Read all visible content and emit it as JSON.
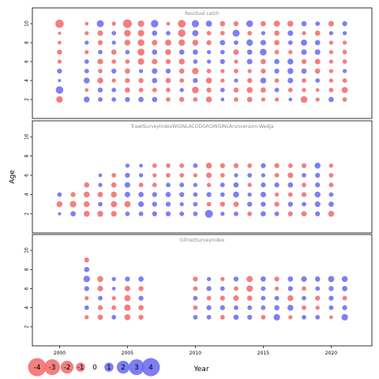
{
  "chart_data": {
    "type": "scatter",
    "subtype": "bubble-residual-plot",
    "xlabel": "Year",
    "ylabel": "Age",
    "xlim": [
      1998,
      2023
    ],
    "ylim": [
      1,
      11
    ],
    "x_ticks": [
      2000,
      2005,
      2010,
      2015,
      2020
    ],
    "y_ticks": [
      2,
      4,
      6,
      8,
      10
    ],
    "ages": [
      2,
      3,
      4,
      5,
      6,
      7,
      8,
      9,
      10
    ],
    "colors": {
      "positive": "#6c6cf4",
      "negative": "#f46c6c"
    },
    "legend": {
      "position": "bottom-left",
      "entries": [
        {
          "label": "-4",
          "value": -4
        },
        {
          "label": "-3",
          "value": -3
        },
        {
          "label": "-2",
          "value": -2
        },
        {
          "label": "-1",
          "value": -1
        },
        {
          "label": "0",
          "value": 0
        },
        {
          "label": "1",
          "value": 1
        },
        {
          "label": "2",
          "value": 2
        },
        {
          "label": "3",
          "value": 3
        },
        {
          "label": "4",
          "value": 4
        }
      ]
    },
    "panels": [
      {
        "title": "Residual catch",
        "years": [
          2000,
          2002,
          2003,
          2004,
          2005,
          2006,
          2007,
          2008,
          2009,
          2010,
          2011,
          2012,
          2013,
          2014,
          2015,
          2016,
          2017,
          2018,
          2019,
          2020,
          2021
        ],
        "residuals": [
          [
            -1.2,
            1.6,
            0.3,
            0.7,
            -0.5,
            -0.7,
            -0.4,
            -0.3,
            -2.0
          ],
          [
            1.0,
            -0.4,
            1.0,
            0.6,
            0.6,
            -0.5,
            0.5,
            -0.5,
            -0.4
          ],
          [
            0.6,
            0.7,
            -1.0,
            -0.6,
            -0.9,
            0.6,
            -0.7,
            -0.9,
            1.4
          ],
          [
            0.6,
            0.6,
            -0.5,
            0.7,
            -0.6,
            -0.8,
            0.5,
            0.6,
            -0.5
          ],
          [
            0.7,
            -0.8,
            -0.7,
            -0.8,
            -0.6,
            0.6,
            -1.0,
            -1.3,
            -2.2
          ],
          [
            0.8,
            -0.6,
            -0.7,
            0.5,
            -1.2,
            -1.4,
            -1.3,
            -1.2,
            -1.2
          ],
          [
            0.8,
            -0.6,
            0.8,
            0.9,
            -0.9,
            0.8,
            -0.9,
            0.8,
            1.6
          ],
          [
            -0.6,
            -0.6,
            -0.8,
            0.7,
            -0.7,
            -1.0,
            -1.1,
            0.6,
            -0.4
          ],
          [
            -0.7,
            0.5,
            -0.6,
            -0.8,
            -1.0,
            0.8,
            -1.2,
            -1.6,
            -1.7
          ],
          [
            -0.6,
            -1.3,
            0.7,
            -1.2,
            0.6,
            0.8,
            -1.0,
            1.1,
            1.5
          ],
          [
            -1.0,
            -0.7,
            -1.0,
            -0.6,
            0.5,
            0.5,
            -0.7,
            -0.6,
            1.1
          ],
          [
            0.4,
            0.6,
            -0.5,
            -0.5,
            0.7,
            0.6,
            0.8,
            -0.6,
            -0.8
          ],
          [
            -0.6,
            -0.7,
            0.5,
            -0.6,
            -0.5,
            -0.9,
            0.6,
            1.4,
            -0.7
          ],
          [
            -0.8,
            -1.0,
            -0.7,
            -0.5,
            0.9,
            0.8,
            1.2,
            -0.6,
            1.3
          ],
          [
            -0.5,
            -0.8,
            1.0,
            -0.7,
            -0.8,
            1.3,
            0.9,
            0.5,
            -0.8
          ],
          [
            -0.5,
            0.6,
            -0.6,
            0.7,
            0.8,
            -0.6,
            -0.8,
            -0.8,
            -1.1
          ],
          [
            0.4,
            -0.6,
            0.9,
            1.0,
            1.0,
            -0.5,
            0.6,
            0.9,
            -1.0
          ],
          [
            -1.3,
            -0.5,
            -0.6,
            0.8,
            -0.7,
            0.9,
            1.1,
            -0.5,
            0.8
          ],
          [
            -0.5,
            -0.4,
            0.6,
            -0.8,
            -0.9,
            0.9,
            0.8,
            -0.8,
            0.6
          ],
          [
            0.8,
            -0.6,
            -0.5,
            -0.5,
            -0.5,
            -0.5,
            -0.5,
            0.5,
            -0.9
          ],
          [
            -0.6,
            -1.1,
            -0.6,
            0.5,
            -0.6,
            -0.6,
            -0.5,
            0.5,
            0.7
          ]
        ]
      },
      {
        "title": "TrawlSurveyIndexWGINLACODGROWGINLArunversion:Wedja",
        "years": [
          2000,
          2001,
          2002,
          2003,
          2004,
          2005,
          2006,
          2007,
          2008,
          2009,
          2010,
          2011,
          2012,
          2013,
          2014,
          2015,
          2016,
          2017,
          2018,
          2019,
          2020
        ],
        "residuals": [
          [
            0.3,
            -1.0,
            0.6,
            null,
            null,
            null,
            null,
            null,
            null
          ],
          [
            0.8,
            -1.2,
            -0.7,
            null,
            null,
            null,
            null,
            null,
            null
          ],
          [
            -1.0,
            -1.0,
            -1.0,
            -0.8,
            null,
            null,
            null,
            null,
            null
          ],
          [
            -1.0,
            0.6,
            -0.8,
            0.5,
            0.4,
            null,
            null,
            null,
            null
          ],
          [
            -0.9,
            -1.1,
            -1.0,
            -0.8,
            -0.6,
            null,
            null,
            null,
            null
          ],
          [
            0.6,
            -1.1,
            0.9,
            0.9,
            0.7,
            0.5,
            null,
            null,
            null
          ],
          [
            0.6,
            0.9,
            0.8,
            -0.6,
            0.5,
            0.4,
            null,
            null,
            null
          ],
          [
            0.7,
            0.7,
            0.7,
            -0.6,
            -0.5,
            -0.6,
            null,
            null,
            null
          ],
          [
            0.7,
            0.7,
            0.8,
            0.6,
            -0.6,
            -0.6,
            null,
            null,
            null
          ],
          [
            0.6,
            0.5,
            0.7,
            0.6,
            -0.6,
            -0.6,
            null,
            null,
            null
          ],
          [
            0.6,
            0.6,
            0.6,
            0.5,
            -0.5,
            0.6,
            null,
            null,
            null
          ],
          [
            1.8,
            -0.6,
            0.7,
            -0.5,
            -0.9,
            -1.0,
            null,
            null,
            null
          ],
          [
            0.5,
            -0.7,
            0.6,
            0.6,
            -0.6,
            -0.7,
            null,
            null,
            null
          ],
          [
            0.6,
            -0.8,
            1.0,
            0.8,
            0.5,
            -0.7,
            null,
            null,
            null
          ],
          [
            -0.6,
            0.7,
            0.5,
            -0.5,
            0.6,
            -0.6,
            null,
            null,
            null
          ],
          [
            0.8,
            0.7,
            0.9,
            0.7,
            0.5,
            0.7,
            null,
            null,
            null
          ],
          [
            0.6,
            -0.7,
            -0.5,
            0.7,
            -0.6,
            -0.7,
            null,
            null,
            null
          ],
          [
            -0.7,
            0.7,
            -0.6,
            0.8,
            -0.9,
            -0.6,
            null,
            null,
            null
          ],
          [
            -0.8,
            0.6,
            -0.7,
            -0.6,
            0.6,
            -0.7,
            null,
            null,
            null
          ],
          [
            0.7,
            0.9,
            1.0,
            0.7,
            0.7,
            1.0,
            null,
            null,
            null
          ],
          [
            -1.0,
            0.8,
            0.6,
            -0.6,
            -0.6,
            -0.5,
            null,
            null,
            null
          ]
        ]
      },
      {
        "title": "GillnetSurveyIndex",
        "years": [
          2002,
          2003,
          2004,
          2005,
          2006,
          2010,
          2011,
          2012,
          2013,
          2014,
          2015,
          2016,
          2017,
          2018,
          2019,
          2020,
          2021
        ],
        "residuals": [
          [
            null,
            -0.5,
            0.6,
            -0.5,
            0.7,
            1.2,
            0.8,
            -0.7,
            null
          ],
          [
            null,
            -0.8,
            -0.7,
            0.6,
            -0.9,
            -1.0,
            null,
            null,
            null
          ],
          [
            null,
            0.6,
            -0.6,
            -0.5,
            0.4,
            0.5,
            null,
            null,
            null
          ],
          [
            null,
            -1.0,
            -1.2,
            -1.1,
            -0.9,
            0.7,
            null,
            null,
            null
          ],
          [
            null,
            -0.7,
            -0.8,
            0.7,
            -0.7,
            0.8,
            null,
            null,
            null
          ],
          [
            null,
            0.6,
            -0.6,
            0.6,
            -0.6,
            -0.7,
            null,
            null,
            null
          ],
          [
            null,
            0.6,
            0.7,
            -0.6,
            0.7,
            0.5,
            null,
            null,
            null
          ],
          [
            null,
            -0.6,
            0.7,
            -0.7,
            0.6,
            -0.5,
            null,
            null,
            null
          ],
          [
            null,
            0.8,
            0.6,
            -0.9,
            -0.6,
            0.7,
            null,
            null,
            null
          ],
          [
            null,
            0.7,
            0.6,
            -0.8,
            -1.2,
            -1.1,
            null,
            null,
            null
          ],
          [
            null,
            -0.6,
            0.6,
            0.6,
            0.6,
            0.8,
            null,
            null,
            null
          ],
          [
            null,
            1.2,
            0.8,
            0.6,
            -0.5,
            -0.7,
            null,
            null,
            null
          ],
          [
            null,
            -0.5,
            1.0,
            -1.0,
            0.7,
            0.8,
            null,
            null,
            null
          ],
          [
            null,
            0.6,
            -0.6,
            0.6,
            -0.6,
            0.9,
            null,
            null,
            null
          ],
          [
            null,
            0.6,
            -0.5,
            -0.7,
            0.6,
            0.8,
            null,
            null,
            null
          ],
          [
            null,
            -0.4,
            0.6,
            0.7,
            0.7,
            1.1,
            null,
            null,
            null
          ],
          [
            null,
            1.2,
            0.7,
            -0.6,
            0.8,
            1.0,
            null,
            null,
            null
          ]
        ]
      }
    ]
  }
}
